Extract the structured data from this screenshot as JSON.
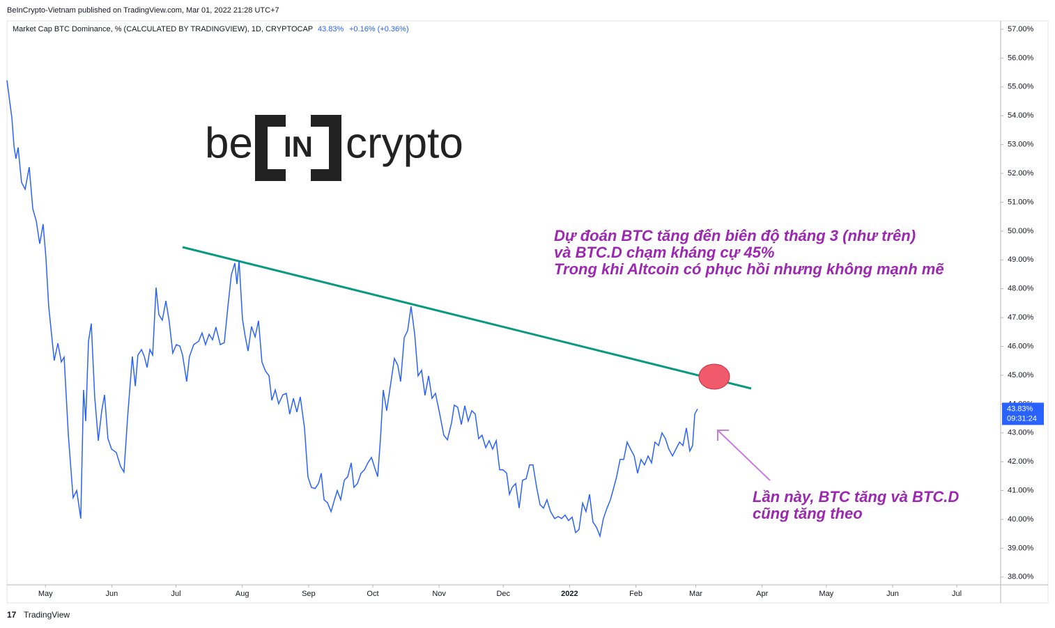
{
  "chart_data": {
    "type": "line",
    "header": "BeInCrypto-Vietnam published on TradingView.com, Mar 01, 2022 21:28 UTC+7",
    "legend_title": "Market Cap BTC Dominance, % (CALCULATED BY TRADINGVIEW), 1D, CRYPTOCAP",
    "last_value_label": "43.83%",
    "change_label": "+0.16% (+0.36%)",
    "countdown": "09:31:24",
    "logo": [
      "be",
      "IN",
      "crypto"
    ],
    "annotations": [
      [
        "Dự đoán BTC tăng đến biên độ tháng 3 (như trên)",
        "và BTC.D chạm kháng cự 45%",
        "Trong khi Altcoin có phục hồi nhưng không mạnh mẽ"
      ],
      [
        "Lần này, BTC tăng và BTC.D",
        "cũng tăng theo"
      ]
    ],
    "footer": "TradingView",
    "color": "#2962ff",
    "x": [
      0,
      2.3,
      3.3,
      4.2,
      5.2,
      6.8,
      8.5,
      10.4,
      12.1,
      13.7,
      15.3,
      16.9,
      18.2,
      19.5,
      22.1,
      23.8,
      25.4,
      26.7,
      28.7,
      30.9,
      32.6,
      34.5,
      35.8,
      36.8,
      38.1,
      39.4,
      41.0,
      42.7,
      44.3,
      45.6,
      47.2,
      48.9,
      51.1,
      53.1,
      54.7,
      56.4,
      58.6,
      60.0,
      61.2,
      62.9,
      64.2,
      65.5,
      66.8,
      68.1,
      69.7,
      71.0,
      72.6,
      74.3,
      75.9,
      77.5,
      79.2,
      80.8,
      82.1,
      84.0,
      85.3,
      87.3,
      89.6,
      91.2,
      92.8,
      94.5,
      96.1,
      97.7,
      99.7,
      101.6,
      103.3,
      104.9,
      106.5,
      107.5,
      108.5,
      110.1,
      111.4,
      112.7,
      114.3,
      116.0,
      117.6,
      119.2,
      120.8,
      122.5,
      123.8,
      125.4,
      127.0,
      129.0,
      130.6,
      132.2,
      133.9,
      135.5,
      137.1,
      139.1,
      140.7,
      142.3,
      144.0,
      145.6,
      146.9,
      148.2,
      149.8,
      151.5,
      153.1,
      154.4,
      156.0,
      157.7,
      159.3,
      160.9,
      162.2,
      163.8,
      165.5,
      167.1,
      168.7,
      170.4,
      171.7,
      173.3,
      174.6,
      175.9,
      177.5,
      179.2,
      181.1,
      182.7,
      184.0,
      185.7,
      187.3,
      188.9,
      190.6,
      192.2,
      193.8,
      195.4,
      197.1,
      198.7,
      200.3,
      202.3,
      204.2,
      205.9,
      207.8,
      209.1,
      210.7,
      212.4,
      214.0,
      215.6,
      217.3,
      218.9,
      220.5,
      222.1,
      223.8,
      225.4,
      227.0,
      228.7,
      230.3,
      231.9,
      233.6,
      234.9,
      236.2,
      237.8,
      239.4,
      241.0,
      242.7,
      244.3,
      245.9,
      247.6,
      249.2,
      250.8,
      252.4,
      254.1,
      256.0,
      257.7,
      259.3,
      260.9,
      262.5,
      264.2,
      265.8,
      267.4,
      269.1,
      270.7,
      272.3,
      273.9,
      275.6,
      277.2,
      278.8,
      280.5,
      282.1,
      283.7,
      285.0,
      286.6,
      288.3,
      289.9,
      291.5,
      293.2,
      294.8,
      296.4,
      298.0,
      299.7,
      301.3,
      302.9,
      304.6,
      306.2,
      307.8,
      309.4,
      311.1,
      312.7,
      314.4,
      316.0,
      317.6,
      319.2,
      320.5,
      321.5,
      322.8
    ],
    "values": [
      55.23,
      53.91,
      52.94,
      52.51,
      52.9,
      51.69,
      51.45,
      52.22,
      50.77,
      50.34,
      49.56,
      50.24,
      49.08,
      47.39,
      45.51,
      46.11,
      45.46,
      45.63,
      42.92,
      40.75,
      41.0,
      40.03,
      44.49,
      43.41,
      46.18,
      46.79,
      44.25,
      42.73,
      43.77,
      44.32,
      42.8,
      42.44,
      42.32,
      41.84,
      41.64,
      43.53,
      45.65,
      44.62,
      45.7,
      45.89,
      45.65,
      45.27,
      45.89,
      45.7,
      48.04,
      47.1,
      46.91,
      47.58,
      46.84,
      45.77,
      46.06,
      46.01,
      45.7,
      44.78,
      45.65,
      46.06,
      46.18,
      46.47,
      46.06,
      46.42,
      46.23,
      46.67,
      46.06,
      46.13,
      47.39,
      48.48,
      48.89,
      48.16,
      48.96,
      46.94,
      46.33,
      45.84,
      46.69,
      46.33,
      46.89,
      45.46,
      45.15,
      44.98,
      44.13,
      44.49,
      44.01,
      44.32,
      44.37,
      43.65,
      44.2,
      43.72,
      44.25,
      43.17,
      41.48,
      41.11,
      41.07,
      41.24,
      41.6,
      40.68,
      40.58,
      40.27,
      40.68,
      41.0,
      40.68,
      41.36,
      41.48,
      41.96,
      41.11,
      41.24,
      41.6,
      41.72,
      41.96,
      42.15,
      41.84,
      41.48,
      42.8,
      44.49,
      43.77,
      44.61,
      45.58,
      45.34,
      44.78,
      46.3,
      46.55,
      47.39,
      46.43,
      44.98,
      45.17,
      44.3,
      44.98,
      44.2,
      44.37,
      43.65,
      42.92,
      42.76,
      43.34,
      43.96,
      43.89,
      43.29,
      43.94,
      43.41,
      43.77,
      43.65,
      42.8,
      42.92,
      42.49,
      42.73,
      42.44,
      42.73,
      41.72,
      41.72,
      41.6,
      40.87,
      41.11,
      41.24,
      40.39,
      41.36,
      41.41,
      41.89,
      41.89,
      41.11,
      40.51,
      40.39,
      40.68,
      40.27,
      40.03,
      40.1,
      40.03,
      40.15,
      39.96,
      40.08,
      39.54,
      39.65,
      40.56,
      40.27,
      40.87,
      39.91,
      39.72,
      39.42,
      40.03,
      40.39,
      40.68,
      41.11,
      41.48,
      42.08,
      42.08,
      42.68,
      42.44,
      42.2,
      41.6,
      42.08,
      41.89,
      42.2,
      41.96,
      42.68,
      42.56,
      43.0,
      42.8,
      42.44,
      42.2,
      42.44,
      42.68,
      42.56,
      43.17,
      42.37,
      42.56,
      43.65,
      43.83
    ],
    "xlim": [
      0,
      464.5
    ],
    "xticks": [
      {
        "value": 18,
        "label": "May"
      },
      {
        "value": 49,
        "label": "Jun"
      },
      {
        "value": 79,
        "label": "Jul"
      },
      {
        "value": 110,
        "label": "Aug"
      },
      {
        "value": 141,
        "label": "Sep"
      },
      {
        "value": 171,
        "label": "Oct"
      },
      {
        "value": 202,
        "label": "Nov"
      },
      {
        "value": 232,
        "label": "Dec"
      },
      {
        "value": 263,
        "label": "2022"
      },
      {
        "value": 294,
        "label": "Feb"
      },
      {
        "value": 322,
        "label": "Mar"
      },
      {
        "value": 353,
        "label": "Apr"
      },
      {
        "value": 383,
        "label": "May"
      },
      {
        "value": 414,
        "label": "Jun"
      },
      {
        "value": 444,
        "label": "Jul"
      }
    ],
    "ylim": [
      37.73,
      57.29
    ],
    "yticks": [
      {
        "value": 38,
        "label": "38.00%"
      },
      {
        "value": 39,
        "label": "39.00%"
      },
      {
        "value": 40,
        "label": "40.00%"
      },
      {
        "value": 41,
        "label": "41.00%"
      },
      {
        "value": 42,
        "label": "42.00%"
      },
      {
        "value": 43,
        "label": "43.00%"
      },
      {
        "value": 44,
        "label": "44.00%"
      },
      {
        "value": 45,
        "label": "45.00%"
      },
      {
        "value": 46,
        "label": "46.00%"
      },
      {
        "value": 47,
        "label": "47.00%"
      },
      {
        "value": 48,
        "label": "48.00%"
      },
      {
        "value": 49,
        "label": "49.00%"
      },
      {
        "value": 50,
        "label": "50.00%"
      },
      {
        "value": 51,
        "label": "51.00%"
      },
      {
        "value": 52,
        "label": "52.00%"
      },
      {
        "value": 53,
        "label": "53.00%"
      },
      {
        "value": 54,
        "label": "54.00%"
      },
      {
        "value": 55,
        "label": "55.00%"
      },
      {
        "value": 56,
        "label": "56.00%"
      },
      {
        "value": 57,
        "label": "57.00%"
      }
    ],
    "last_value": 43.83,
    "grid": false
  }
}
